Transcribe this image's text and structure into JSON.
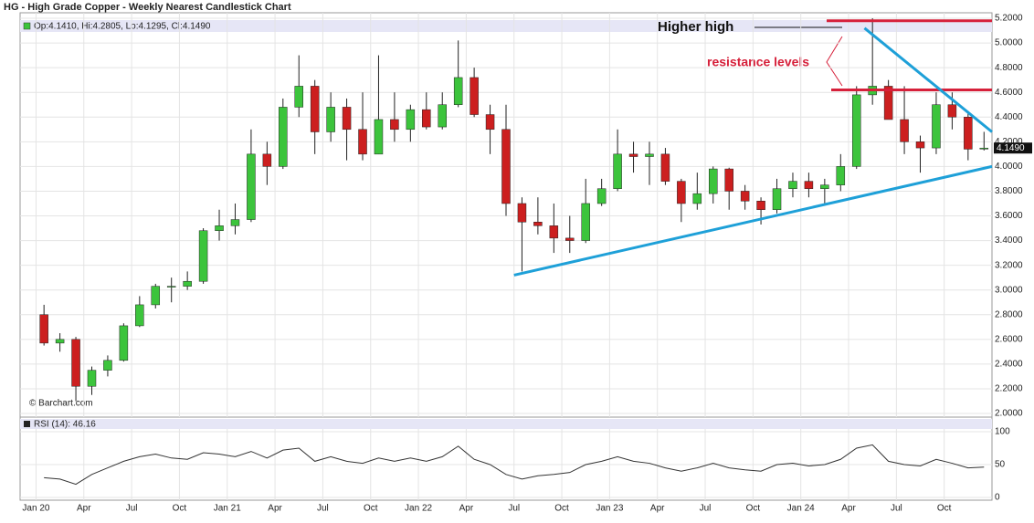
{
  "chart_data": {
    "type": "candlestick",
    "title": "HG - High Grade Copper - Weekly Nearest Candlestick Chart",
    "ohlc_label": "Op:4.1410, Hi:4.2805, Lo:4.1295, Cl:4.1490",
    "last_price_label": "4.1490",
    "source": "© Barchart.com",
    "annotations": [
      "Higher high",
      "resistance levels"
    ],
    "up_color": "#3cc43c",
    "down_color": "#cc1f1f",
    "x": [
      "2020-01",
      "2020-02",
      "2020-03",
      "2020-04",
      "2020-05",
      "2020-06",
      "2020-07",
      "2020-08",
      "2020-09",
      "2020-10",
      "2020-11",
      "2020-12",
      "2021-01",
      "2021-02",
      "2021-03",
      "2021-04",
      "2021-05",
      "2021-06",
      "2021-07",
      "2021-08",
      "2021-09",
      "2021-10",
      "2021-11",
      "2021-12",
      "2022-01",
      "2022-02",
      "2022-03",
      "2022-04",
      "2022-05",
      "2022-06",
      "2022-07",
      "2022-08",
      "2022-09",
      "2022-10",
      "2022-11",
      "2022-12",
      "2023-01",
      "2023-02",
      "2023-03",
      "2023-04",
      "2023-05",
      "2023-06",
      "2023-07",
      "2023-08",
      "2023-09",
      "2023-10",
      "2023-11",
      "2023-12",
      "2024-01",
      "2024-02",
      "2024-03",
      "2024-04",
      "2024-05",
      "2024-06",
      "2024-07",
      "2024-08",
      "2024-09",
      "2024-10",
      "2024-11",
      "2024-12"
    ],
    "open": [
      2.8,
      2.57,
      2.6,
      2.22,
      2.35,
      2.43,
      2.71,
      2.88,
      3.03,
      3.03,
      3.07,
      3.48,
      3.52,
      3.57,
      4.1,
      4.0,
      4.48,
      4.65,
      4.28,
      4.48,
      4.3,
      4.1,
      4.38,
      4.3,
      4.46,
      4.32,
      4.5,
      4.72,
      4.42,
      4.3,
      3.7,
      3.55,
      3.52,
      3.42,
      3.4,
      3.7,
      3.82,
      4.1,
      4.08,
      4.1,
      3.88,
      3.7,
      3.78,
      3.98,
      3.8,
      3.72,
      3.65,
      3.82,
      3.88,
      3.82,
      3.85,
      4.0,
      4.58,
      4.65,
      4.38,
      4.2,
      4.15,
      4.5,
      4.4,
      4.141
    ],
    "high": [
      2.88,
      2.65,
      2.62,
      2.38,
      2.47,
      2.73,
      2.95,
      3.05,
      3.1,
      3.15,
      3.5,
      3.65,
      3.7,
      4.3,
      4.2,
      4.55,
      4.9,
      4.7,
      4.6,
      4.55,
      4.6,
      4.9,
      4.6,
      4.5,
      4.6,
      4.6,
      5.02,
      4.8,
      4.5,
      4.5,
      3.75,
      3.75,
      3.7,
      3.6,
      3.9,
      3.9,
      4.3,
      4.2,
      4.2,
      4.15,
      3.9,
      3.95,
      4.0,
      3.99,
      3.85,
      3.75,
      3.9,
      3.95,
      3.95,
      3.9,
      4.1,
      4.65,
      5.2,
      4.7,
      4.65,
      4.25,
      4.6,
      4.6,
      4.45,
      4.2805
    ],
    "low": [
      2.55,
      2.5,
      2.1,
      2.15,
      2.3,
      2.42,
      2.7,
      2.85,
      2.9,
      3.0,
      3.05,
      3.4,
      3.45,
      3.55,
      3.85,
      3.98,
      4.4,
      4.1,
      4.2,
      4.05,
      4.05,
      4.1,
      4.2,
      4.2,
      4.3,
      4.3,
      4.48,
      4.4,
      4.1,
      3.6,
      3.15,
      3.45,
      3.3,
      3.3,
      3.38,
      3.68,
      3.8,
      3.95,
      3.85,
      3.85,
      3.55,
      3.65,
      3.7,
      3.65,
      3.65,
      3.53,
      3.62,
      3.75,
      3.75,
      3.7,
      3.8,
      3.98,
      4.5,
      4.4,
      4.1,
      3.95,
      4.1,
      4.3,
      4.05,
      4.1295
    ],
    "close": [
      2.57,
      2.6,
      2.22,
      2.35,
      2.43,
      2.71,
      2.88,
      3.03,
      3.03,
      3.07,
      3.48,
      3.52,
      3.57,
      4.1,
      4.0,
      4.48,
      4.65,
      4.28,
      4.48,
      4.3,
      4.1,
      4.38,
      4.3,
      4.46,
      4.32,
      4.5,
      4.72,
      4.42,
      4.3,
      3.7,
      3.55,
      3.52,
      3.42,
      3.4,
      3.7,
      3.82,
      4.1,
      4.08,
      4.1,
      3.88,
      3.7,
      3.78,
      3.98,
      3.8,
      3.72,
      3.65,
      3.82,
      3.88,
      3.82,
      3.85,
      4.0,
      4.58,
      4.65,
      4.38,
      4.2,
      4.15,
      4.5,
      4.4,
      4.14,
      4.149
    ],
    "xlim": [
      "2019-12",
      "2025-01"
    ],
    "xticks": [
      {
        "value": "2020-01",
        "label": "Jan 20"
      },
      {
        "value": "2020-04",
        "label": "Apr"
      },
      {
        "value": "2020-07",
        "label": "Jul"
      },
      {
        "value": "2020-10",
        "label": "Oct"
      },
      {
        "value": "2021-01",
        "label": "Jan 21"
      },
      {
        "value": "2021-04",
        "label": "Apr"
      },
      {
        "value": "2021-07",
        "label": "Jul"
      },
      {
        "value": "2021-10",
        "label": "Oct"
      },
      {
        "value": "2022-01",
        "label": "Jan 22"
      },
      {
        "value": "2022-04",
        "label": "Apr"
      },
      {
        "value": "2022-07",
        "label": "Jul"
      },
      {
        "value": "2022-10",
        "label": "Oct"
      },
      {
        "value": "2023-01",
        "label": "Jan 23"
      },
      {
        "value": "2023-04",
        "label": "Apr"
      },
      {
        "value": "2023-07",
        "label": "Jul"
      },
      {
        "value": "2023-10",
        "label": "Oct"
      },
      {
        "value": "2024-01",
        "label": "Jan 24"
      },
      {
        "value": "2024-04",
        "label": "Apr"
      },
      {
        "value": "2024-07",
        "label": "Jul"
      },
      {
        "value": "2024-10",
        "label": "Oct"
      }
    ],
    "ylim": [
      2.0,
      5.2
    ],
    "yticks": [
      {
        "value": 2.0,
        "label": "2.0000"
      },
      {
        "value": 2.2,
        "label": "2.2000"
      },
      {
        "value": 2.4,
        "label": "2.4000"
      },
      {
        "value": 2.6,
        "label": "2.6000"
      },
      {
        "value": 2.8,
        "label": "2.8000"
      },
      {
        "value": 3.0,
        "label": "3.0000"
      },
      {
        "value": 3.2,
        "label": "3.2000"
      },
      {
        "value": 3.4,
        "label": "3.4000"
      },
      {
        "value": 3.6,
        "label": "3.6000"
      },
      {
        "value": 3.8,
        "label": "3.8000"
      },
      {
        "value": 4.0,
        "label": "4.0000"
      },
      {
        "value": 4.2,
        "label": "4.2000"
      },
      {
        "value": 4.4,
        "label": "4.4000"
      },
      {
        "value": 4.6,
        "label": "4.6000"
      },
      {
        "value": 4.8,
        "label": "4.8000"
      },
      {
        "value": 5.0,
        "label": "5.0000"
      },
      {
        "value": 5.2,
        "label": "5.2000"
      }
    ],
    "resistance_levels": [
      5.18,
      4.62
    ],
    "resistance_color": "#d6203a",
    "trendlines": [
      {
        "x": [
          "2022-07",
          "2025-01"
        ],
        "y": [
          3.12,
          4.0
        ]
      },
      {
        "x": [
          "2024-05",
          "2025-01"
        ],
        "y": [
          5.12,
          4.28
        ]
      }
    ],
    "trendline_color": "#1ea0d8",
    "rsi": {
      "label": "RSI (14): 46.16",
      "color": "#333333",
      "values": [
        30,
        28,
        20,
        35,
        45,
        55,
        62,
        66,
        60,
        58,
        68,
        66,
        62,
        70,
        60,
        72,
        75,
        55,
        62,
        55,
        52,
        60,
        55,
        60,
        55,
        62,
        78,
        58,
        50,
        35,
        28,
        33,
        35,
        38,
        50,
        55,
        62,
        55,
        52,
        45,
        40,
        45,
        52,
        45,
        42,
        40,
        50,
        52,
        48,
        50,
        58,
        75,
        80,
        55,
        50,
        48,
        58,
        52,
        45,
        46.16
      ],
      "ylim": [
        0,
        100
      ],
      "yticks": [
        0,
        50,
        100
      ]
    }
  }
}
